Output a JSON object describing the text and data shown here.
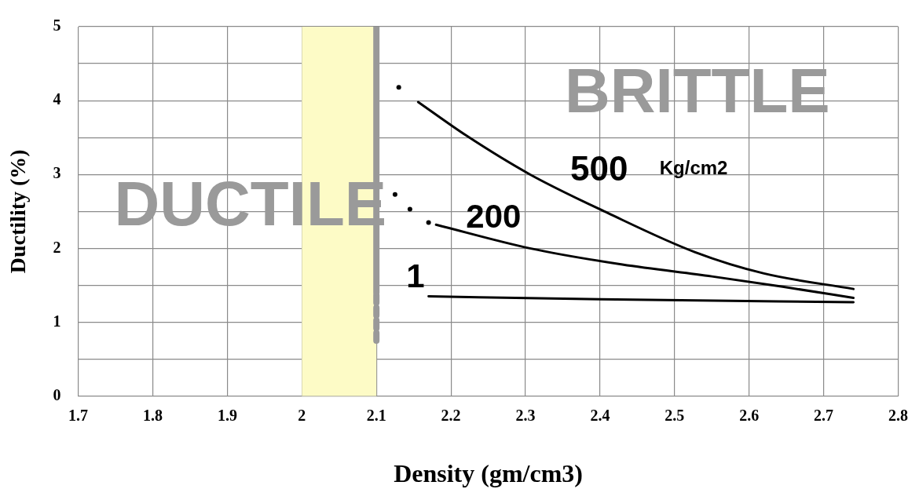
{
  "chart_data": {
    "type": "line",
    "xlabel": "Density (gm/cm3)",
    "ylabel": "Ductility (%)",
    "xlim": [
      1.7,
      2.8
    ],
    "xticks": [
      1.7,
      1.8,
      1.9,
      2,
      2.1,
      2.2,
      2.3,
      2.4,
      2.5,
      2.6,
      2.7,
      2.8
    ],
    "ylim": [
      0,
      5
    ],
    "yticks": [
      0,
      {
        "value": 0.5,
        "label": null
      },
      1,
      {
        "value": 1.5,
        "label": null
      },
      2,
      {
        "value": 2.5,
        "label": null
      },
      3,
      {
        "value": 3.5,
        "label": null
      },
      4,
      {
        "value": 4.5,
        "label": null
      },
      5
    ],
    "grid": true,
    "legend": false,
    "series": [
      {
        "type": "line",
        "color": "#000000",
        "x": [
          2.156,
          2.22,
          2.306,
          2.41,
          2.527,
          2.62,
          2.74
        ],
        "values": [
          3.98,
          3.53,
          3.0,
          2.48,
          1.95,
          1.66,
          1.45
        ]
      },
      {
        "type": "line",
        "color": "#000000",
        "x": [
          2.18,
          2.306,
          2.43,
          2.55,
          2.645,
          2.74
        ],
        "values": [
          2.32,
          2.0,
          1.78,
          1.62,
          1.48,
          1.33
        ]
      },
      {
        "type": "line",
        "color": "#000000",
        "x": [
          2.17,
          2.4,
          2.74
        ],
        "values": [
          1.35,
          1.31,
          1.27
        ]
      },
      {
        "type": "scatter",
        "marker": "circle",
        "color": "#000000",
        "x": [
          2.13
        ],
        "values": [
          4.18
        ]
      },
      {
        "type": "scatter",
        "marker": "circle",
        "color": "#000000",
        "x": [
          2.125,
          2.145,
          2.17
        ],
        "values": [
          2.73,
          2.53,
          2.35
        ]
      },
      {
        "type": "line",
        "color": "#999999",
        "x": [
          2.1,
          2.1
        ],
        "values": [
          1.4,
          5
        ]
      },
      {
        "type": "line",
        "color": "#999999",
        "line_style": "dashed",
        "x": [
          2.1,
          2.1
        ],
        "values": [
          0.75,
          1.4
        ]
      }
    ],
    "bands": [
      {
        "axis": "x",
        "from": 2.0,
        "to": 2.1,
        "color": "#fdfbc6"
      }
    ],
    "annotations": [
      "DUCTILE",
      "BRITTLE",
      "500",
      "Kg/cm2",
      "200",
      "1"
    ]
  }
}
